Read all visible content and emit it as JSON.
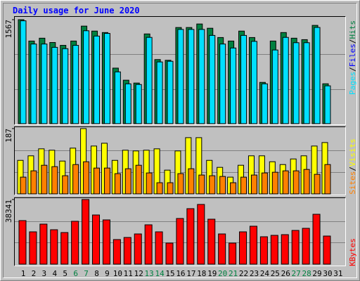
{
  "chart_data": [
    {
      "type": "bar",
      "title": "Daily usage for June 2020",
      "categories": [
        "1",
        "2",
        "3",
        "4",
        "5",
        "6",
        "7",
        "8",
        "9",
        "10",
        "11",
        "12",
        "13",
        "14",
        "15",
        "16",
        "17",
        "18",
        "19",
        "20",
        "21",
        "22",
        "23",
        "24",
        "25",
        "26",
        "27",
        "28",
        "29",
        "30",
        "31"
      ],
      "category_colors": [
        "#000000",
        "#000000",
        "#000000",
        "#000000",
        "#000000",
        "#008040",
        "#008040",
        "#000000",
        "#000000",
        "#000000",
        "#000000",
        "#000000",
        "#008040",
        "#008040",
        "#000000",
        "#000000",
        "#000000",
        "#000000",
        "#000000",
        "#008040",
        "#008040",
        "#000000",
        "#000000",
        "#000000",
        "#000000",
        "#000000",
        "#008040",
        "#008040",
        "#000000",
        "#000000",
        "#000000"
      ],
      "legend_separator": "/",
      "series": [
        {
          "name": "Hits",
          "color": "#008040",
          "values": [
            1567,
            1245,
            1288,
            1223,
            1180,
            1245,
            1470,
            1395,
            1373,
            837,
            655,
            612,
            1352,
            966,
            955,
            1449,
            1449,
            1502,
            1438,
            1298,
            1245,
            1395,
            1298,
            622,
            1245,
            1373,
            1288,
            1266,
            1481,
            601,
            0
          ]
        },
        {
          "name": "Files",
          "color": "#0000ff",
          "values": [
            860,
            690,
            700,
            670,
            650,
            680,
            800,
            760,
            750,
            460,
            360,
            340,
            740,
            530,
            520,
            790,
            790,
            820,
            790,
            710,
            680,
            760,
            710,
            340,
            680,
            750,
            700,
            690,
            810,
            330,
            0
          ]
        },
        {
          "name": "Pages",
          "color": "#00e0ff",
          "values": [
            1550,
            1200,
            1200,
            1150,
            1130,
            1180,
            1400,
            1320,
            1360,
            780,
            600,
            590,
            1300,
            930,
            940,
            1420,
            1420,
            1420,
            1330,
            1200,
            1140,
            1330,
            1240,
            600,
            1110,
            1300,
            1220,
            1220,
            1450,
            570,
            0
          ]
        }
      ],
      "ylim": [
        0,
        1567
      ],
      "yticks": [
        1567
      ]
    },
    {
      "type": "bar",
      "series": [
        {
          "name": "Visits",
          "color": "#ffff00",
          "values": [
            96,
            109,
            129,
            125,
            94,
            131,
            187,
            137,
            145,
            96,
            125,
            123,
            125,
            129,
            68,
            123,
            161,
            161,
            96,
            76,
            48,
            82,
            109,
            109,
            92,
            84,
            100,
            109,
            137,
            147,
            0
          ]
        },
        {
          "name": "Sites",
          "color": "#ff8000",
          "values": [
            48,
            66,
            82,
            78,
            52,
            84,
            92,
            74,
            74,
            58,
            72,
            82,
            60,
            32,
            32,
            58,
            72,
            54,
            52,
            50,
            32,
            48,
            54,
            60,
            62,
            66,
            66,
            70,
            56,
            84,
            0
          ]
        }
      ],
      "ylim": [
        0,
        187
      ],
      "yticks": [
        187
      ]
    },
    {
      "type": "bar",
      "series": [
        {
          "name": "KBytes",
          "color": "#ff0000",
          "values": [
            25839,
            19171,
            23755,
            20421,
            18754,
            25422,
            38341,
            29173,
            26255,
            14586,
            15837,
            17920,
            23338,
            19171,
            12503,
            27089,
            32923,
            35424,
            26672,
            17920,
            12503,
            19171,
            22505,
            16253,
            17087,
            17504,
            20004,
            21254,
            29589,
            16670,
            0
          ]
        }
      ],
      "ylim": [
        0,
        38341
      ],
      "yticks": [
        38341
      ]
    }
  ]
}
